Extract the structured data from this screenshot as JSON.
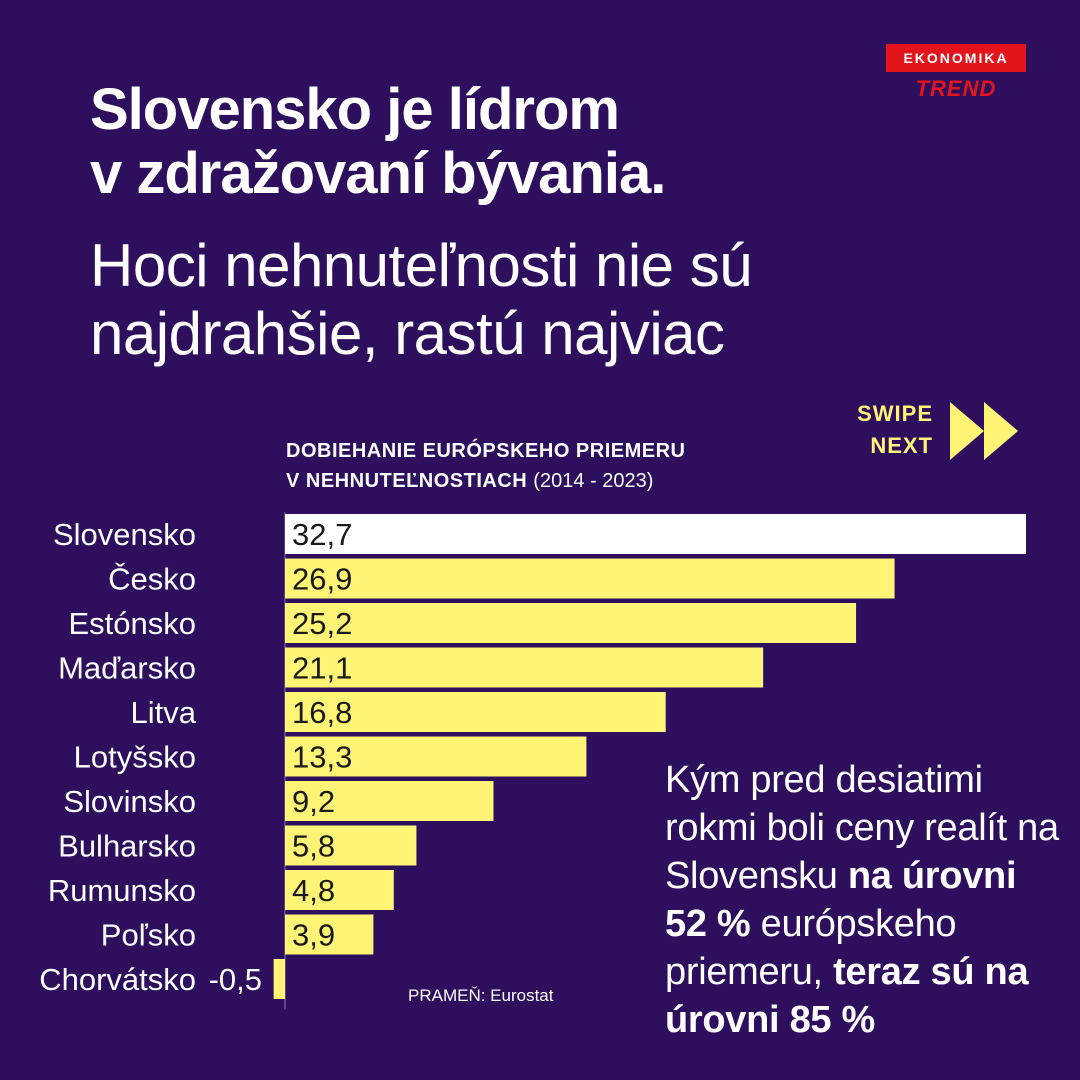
{
  "brand": {
    "top": "EKONOMIKA",
    "bottom": "TREND",
    "color": "#e3141c"
  },
  "headline": {
    "line1": "Slovensko je lídrom",
    "line2": "v zdražovaní bývania."
  },
  "subheadline": {
    "line1": "Hoci nehnuteľnosti nie sú",
    "line2": "najdrahšie, rastú najviac"
  },
  "swipe": {
    "line1": "SWIPE",
    "line2": "NEXT",
    "icon": "double-arrow-icon",
    "color": "#fff476"
  },
  "chart_data": {
    "type": "bar",
    "orientation": "horizontal",
    "title_line1": "DOBIEHANIE EURÓPSKEHO PRIEMERU",
    "title_line2": "V NEHNUTEĽNOSTIACH",
    "title_years": "(2014 - 2023)",
    "categories": [
      "Slovensko",
      "Česko",
      "Estónsko",
      "Maďarsko",
      "Litva",
      "Lotyšsko",
      "Slovinsko",
      "Bulharsko",
      "Rumunsko",
      "Poľsko",
      "Chorvátsko"
    ],
    "values": [
      32.7,
      26.9,
      25.2,
      21.1,
      16.8,
      13.3,
      9.2,
      5.8,
      4.8,
      3.9,
      -0.5
    ],
    "value_labels": [
      "32,7",
      "26,9",
      "25,2",
      "21,1",
      "16,8",
      "13,3",
      "9,2",
      "5,8",
      "4,8",
      "3,9",
      "-0,5"
    ],
    "highlight": "Slovensko",
    "colors": {
      "bar": "#fff476",
      "highlight": "#ffffff",
      "label": "#1a1a1a",
      "category": "#ffffff"
    },
    "source": "PRAMEŇ: Eurostat"
  },
  "note": {
    "t1": "Kým pred desiatimi rokmi boli ceny realít na Slovensku ",
    "b1": "na úrovni 52 %",
    "t2": " európskeho priemeru, ",
    "b2": "teraz sú na úrovni 85 %"
  },
  "colors": {
    "background": "#2e0f5e",
    "text": "#ffffff"
  }
}
